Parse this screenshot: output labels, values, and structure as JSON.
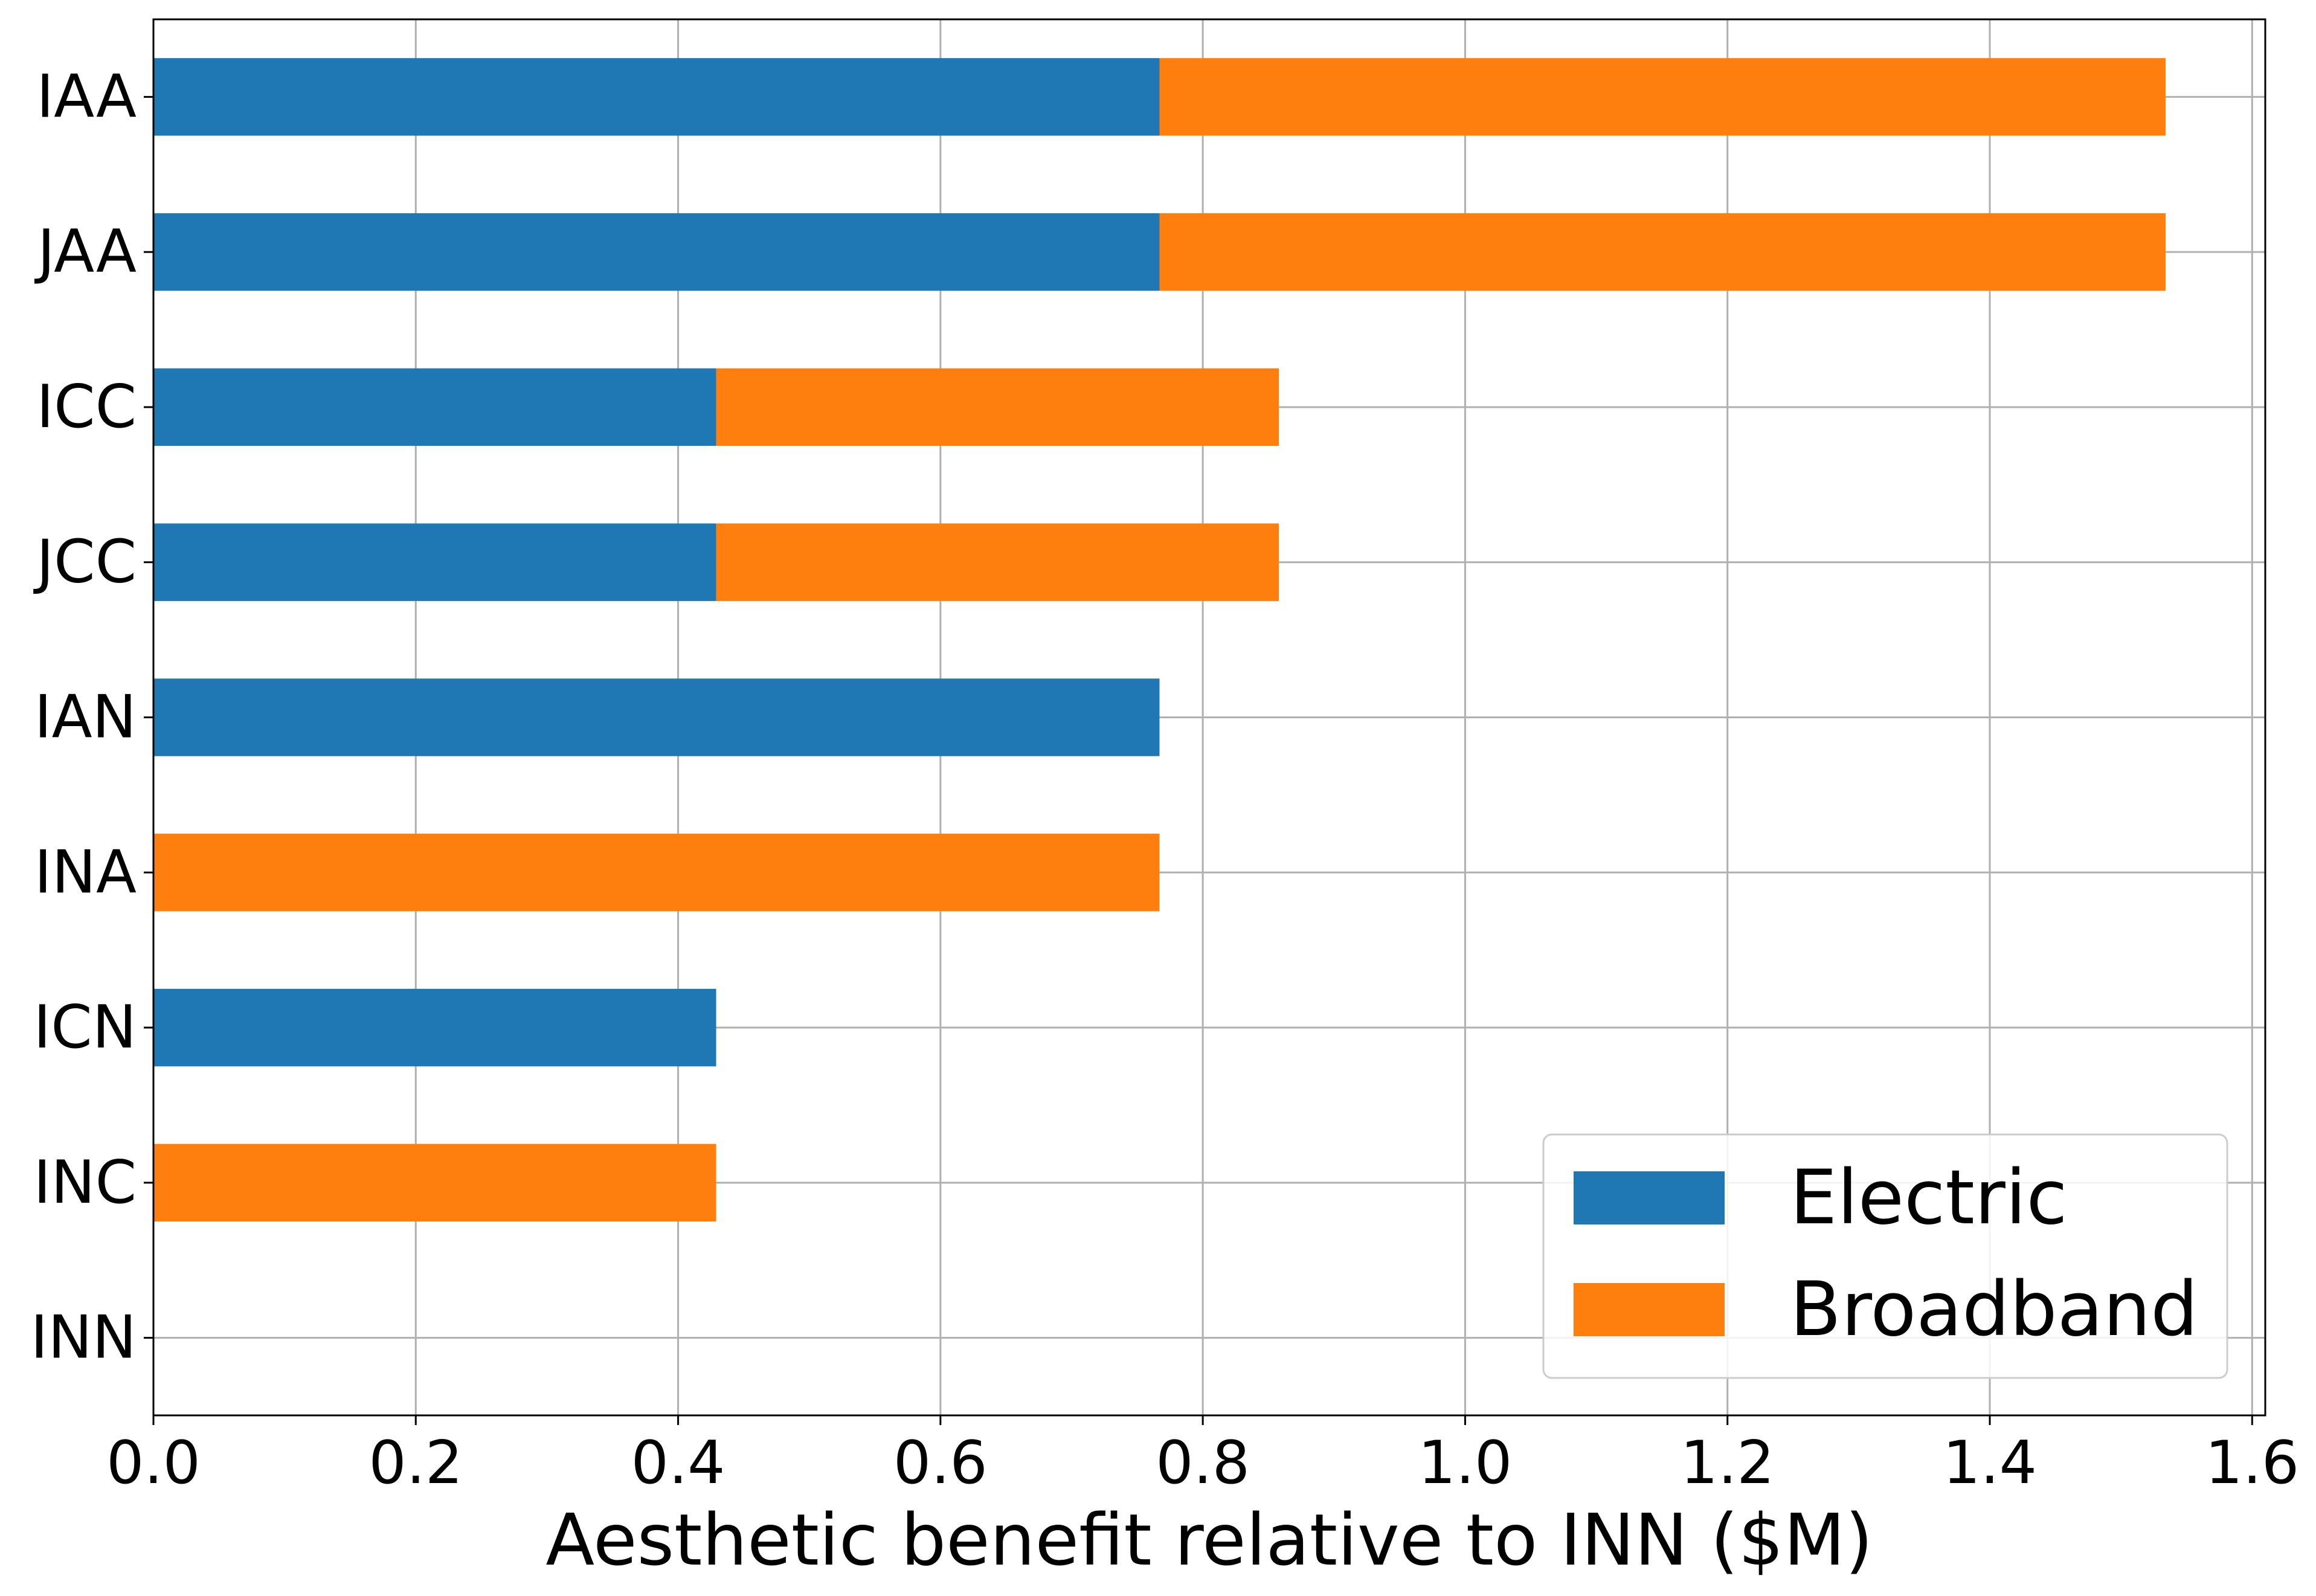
{
  "chart_data": {
    "type": "bar",
    "orientation": "horizontal",
    "stacked": true,
    "categories": [
      "IAA",
      "JAA",
      "ICC",
      "JCC",
      "IAN",
      "INA",
      "ICN",
      "INC",
      "INN"
    ],
    "series": [
      {
        "name": "Electric",
        "color": "#1f77b4",
        "values": [
          0.767,
          0.767,
          0.429,
          0.429,
          0.767,
          0.0,
          0.429,
          0.0,
          0.0
        ]
      },
      {
        "name": "Broadband",
        "color": "#ff7f0e",
        "values": [
          0.767,
          0.767,
          0.429,
          0.429,
          0.0,
          0.767,
          0.0,
          0.429,
          0.0
        ]
      }
    ],
    "title": "",
    "xlabel": "Aesthetic benefit relative to INN ($M)",
    "ylabel": "",
    "xlim": [
      0,
      1.61
    ],
    "xticks": [
      0.0,
      0.2,
      0.4,
      0.6,
      0.8,
      1.0,
      1.2,
      1.4,
      1.6
    ],
    "xtick_labels": [
      "0.0",
      "0.2",
      "0.4",
      "0.6",
      "0.8",
      "1.0",
      "1.2",
      "1.4",
      "1.6"
    ],
    "grid": true,
    "legend_position": "bottom-right"
  }
}
